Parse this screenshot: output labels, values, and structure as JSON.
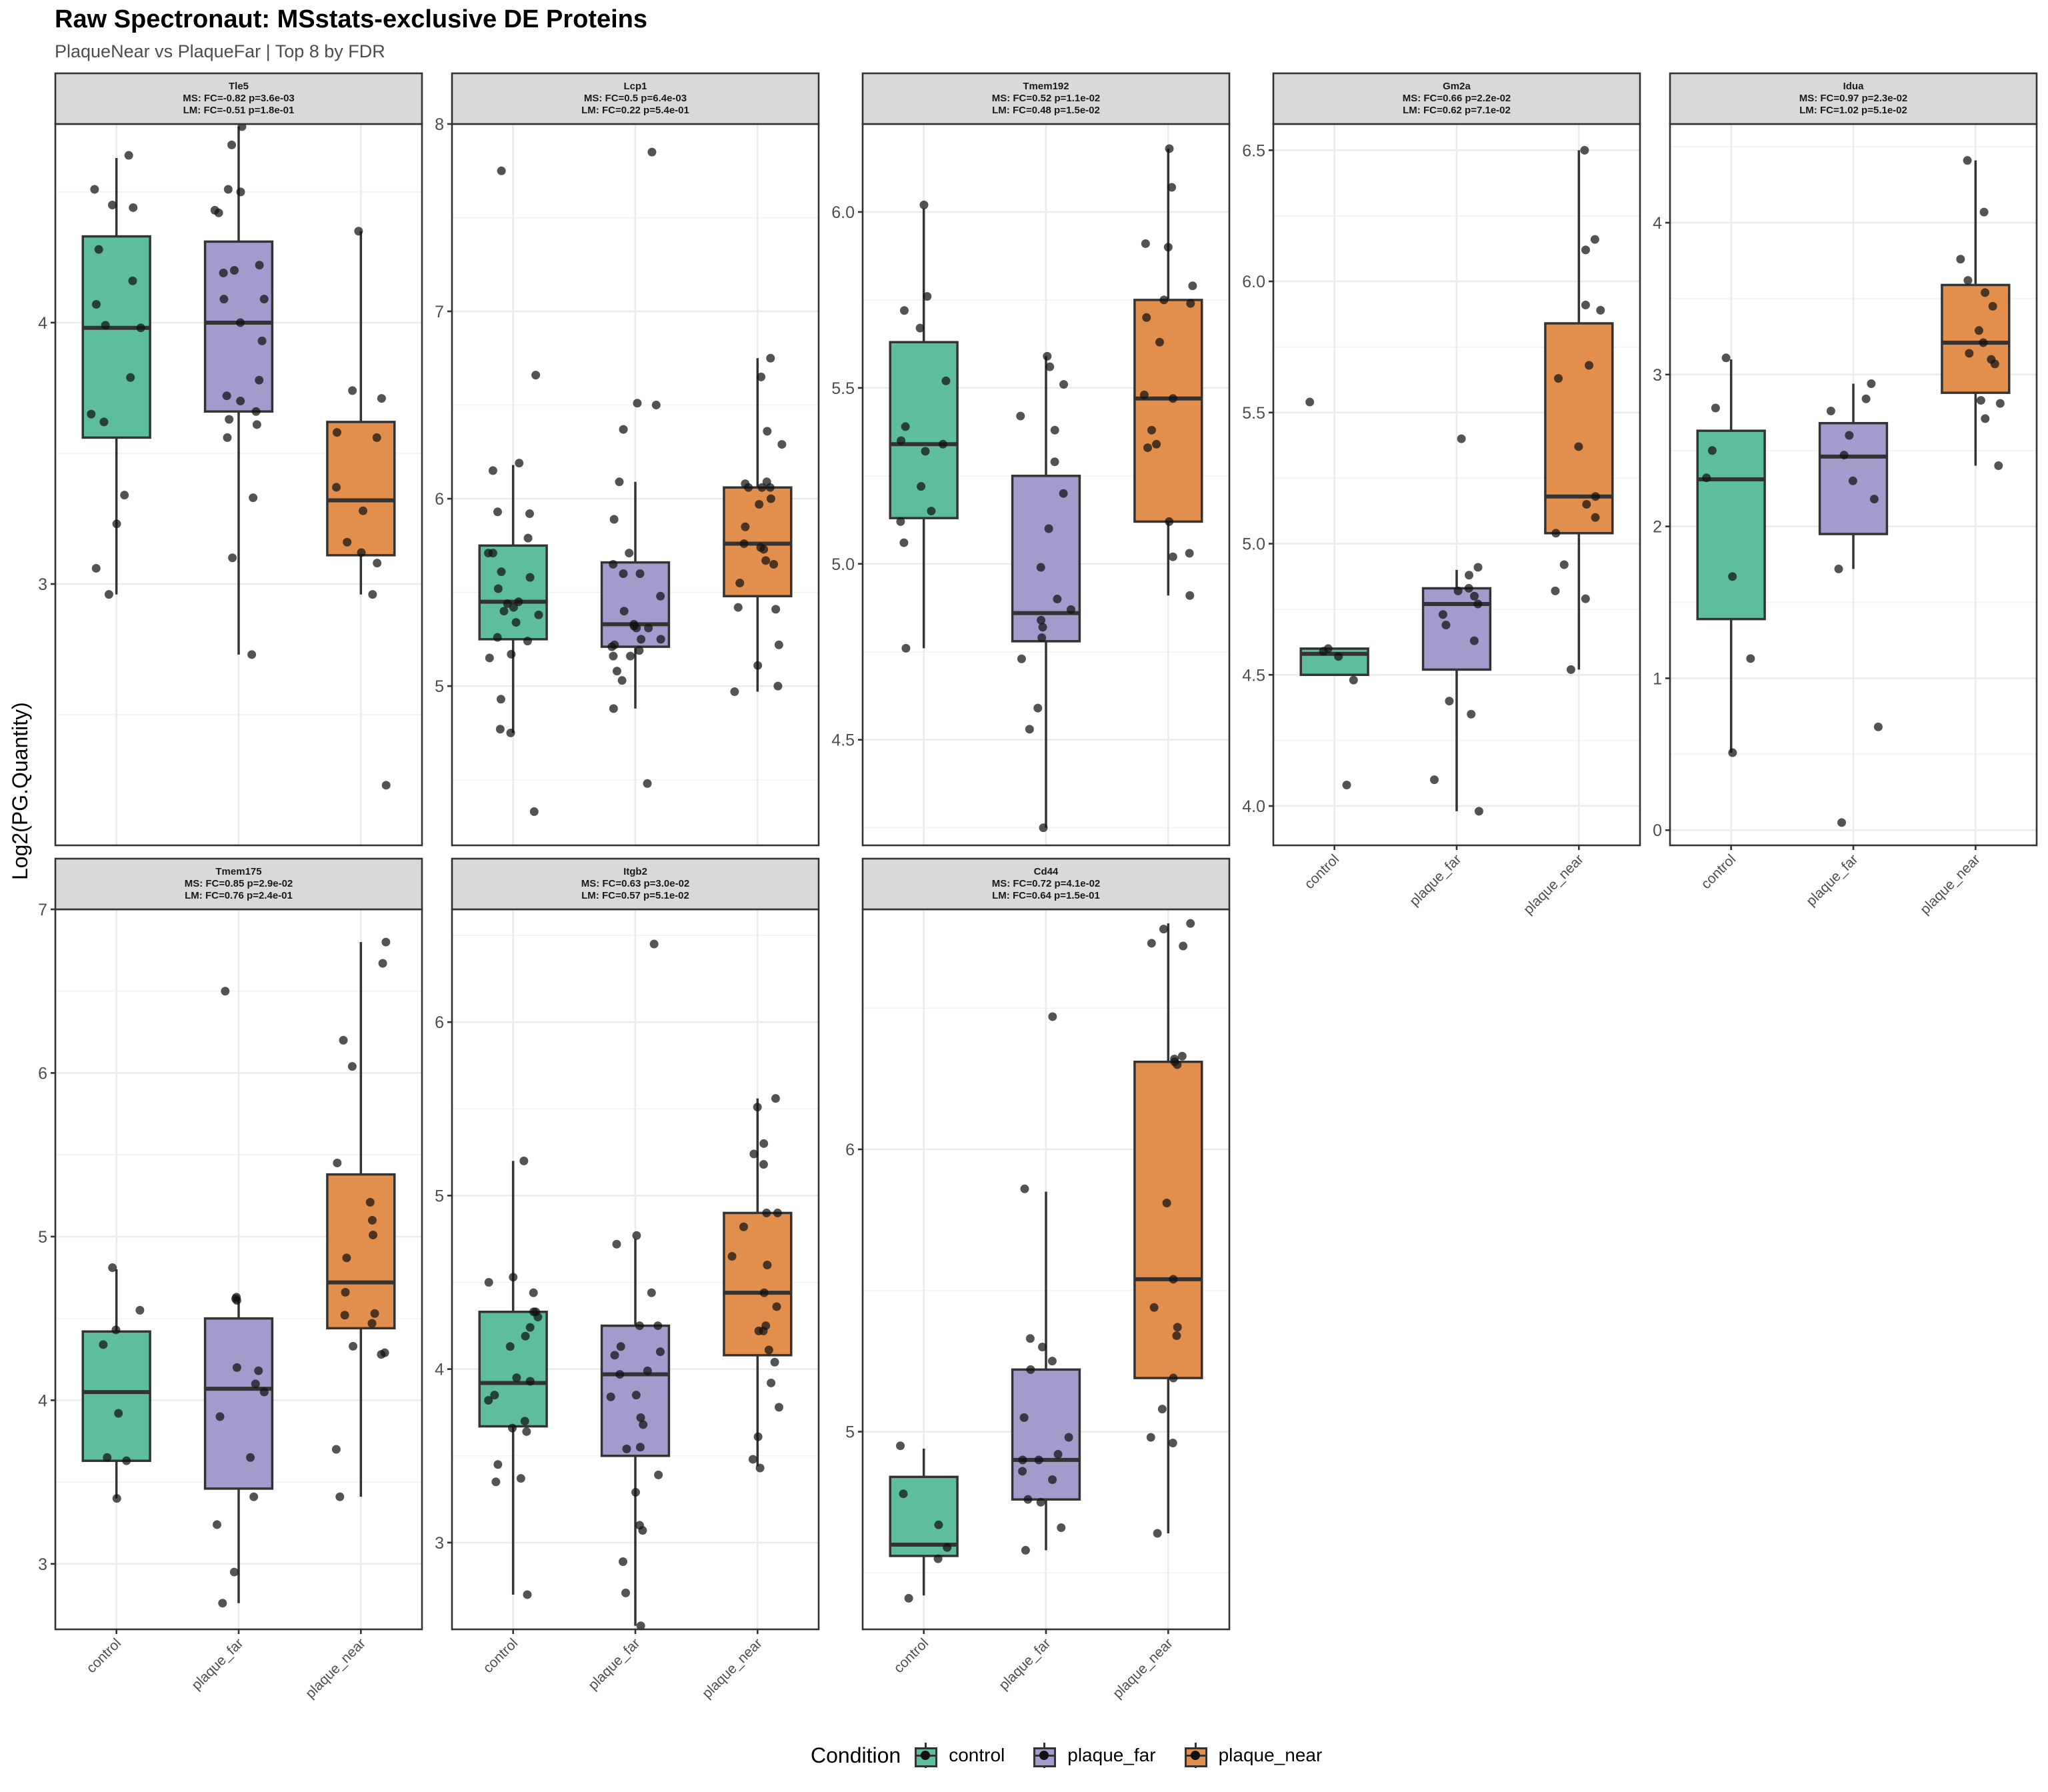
{
  "title": "Raw Spectronaut: MSstats-exclusive DE Proteins",
  "subtitle": "PlaqueNear vs PlaqueFar | Top 8 by FDR",
  "chart_data": {
    "type": "box",
    "title": "Raw Spectronaut: MSstats-exclusive DE Proteins",
    "subtitle": "PlaqueNear vs PlaqueFar | Top 8 by FDR",
    "ylabel": "Log2(PG.Quantity)",
    "xlabel": "",
    "categories": [
      "control",
      "plaque_far",
      "plaque_near"
    ],
    "legend": {
      "title": "Condition",
      "position": "bottom",
      "entries": [
        "control",
        "plaque_far",
        "plaque_near"
      ]
    },
    "colors": {
      "control": "#1b9e77",
      "plaque_far": "#7570b3",
      "plaque_near": "#d95f02"
    },
    "grid": true,
    "panels": [
      {
        "protein": "Tle5",
        "ms": "MS: FC=-0.82 p=3.6e-03",
        "lm": "LM: FC=-0.51 p=1.8e-01",
        "ylim": [
          2.0,
          4.76
        ],
        "yticks": [
          3,
          4
        ],
        "boxes": [
          {
            "group": "control",
            "min": 2.96,
            "q1": 3.56,
            "median": 3.98,
            "q3": 4.33,
            "max": 4.63,
            "points": [
              4.64,
              4.51,
              4.45,
              4.44,
              4.28,
              4.16,
              4.07,
              3.98,
              3.99,
              3.79,
              3.65,
              3.62,
              3.34,
              3.23,
              3.06,
              2.96
            ]
          },
          {
            "group": "plaque_far",
            "min": 2.73,
            "q1": 3.66,
            "median": 4.0,
            "q3": 4.31,
            "max": 4.75,
            "points": [
              4.75,
              4.68,
              4.51,
              4.5,
              4.42,
              4.43,
              4.22,
              4.19,
              4.2,
              4.09,
              4.09,
              4.0,
              3.93,
              3.78,
              3.72,
              3.7,
              3.66,
              3.63,
              3.61,
              3.56,
              3.33,
              3.1,
              2.73
            ]
          },
          {
            "group": "plaque_near",
            "min": 2.96,
            "q1": 3.11,
            "median": 3.32,
            "q3": 3.62,
            "max": 4.35,
            "points": [
              4.35,
              3.74,
              3.71,
              3.58,
              3.56,
              3.37,
              3.28,
              3.16,
              3.12,
              3.08,
              2.96,
              2.23
            ]
          }
        ]
      },
      {
        "protein": "Lcp1",
        "ms": "MS: FC=0.5 p=6.4e-03",
        "lm": "LM: FC=0.22 p=5.4e-01",
        "ylim": [
          4.15,
          8.0
        ],
        "yticks": [
          5,
          6,
          7,
          8
        ],
        "boxes": [
          {
            "group": "control",
            "min": 4.75,
            "q1": 5.25,
            "median": 5.45,
            "q3": 5.75,
            "max": 6.18,
            "points": [
              7.75,
              6.66,
              6.19,
              6.15,
              5.93,
              5.92,
              5.79,
              5.71,
              5.71,
              5.61,
              5.58,
              5.52,
              5.44,
              5.45,
              5.42,
              5.4,
              5.38,
              5.34,
              5.26,
              5.24,
              5.17,
              5.15,
              4.93,
              4.75,
              4.77,
              4.33
            ]
          },
          {
            "group": "plaque_far",
            "min": 4.88,
            "q1": 5.21,
            "median": 5.33,
            "q3": 5.66,
            "max": 6.09,
            "points": [
              7.85,
              6.51,
              6.5,
              6.37,
              6.09,
              5.89,
              5.71,
              5.65,
              5.6,
              5.6,
              5.48,
              5.4,
              5.33,
              5.32,
              5.31,
              5.31,
              5.25,
              5.25,
              5.22,
              5.21,
              5.19,
              5.16,
              5.16,
              5.08,
              5.03,
              4.88,
              4.48
            ]
          },
          {
            "group": "plaque_near",
            "min": 4.97,
            "q1": 5.48,
            "median": 5.76,
            "q3": 6.06,
            "max": 6.75,
            "points": [
              6.75,
              6.65,
              6.36,
              6.29,
              6.09,
              6.08,
              6.06,
              6.06,
              6.06,
              6.0,
              5.97,
              5.85,
              5.76,
              5.74,
              5.73,
              5.67,
              5.65,
              5.55,
              5.41,
              5.42,
              5.22,
              5.11,
              5.0,
              4.97
            ]
          }
        ]
      },
      {
        "protein": "Tmem192",
        "ms": "MS: FC=0.52 p=1.1e-02",
        "lm": "LM: FC=0.48 p=1.5e-02",
        "ylim": [
          4.2,
          6.25
        ],
        "yticks": [
          4.5,
          5.0,
          5.5,
          6.0
        ],
        "boxes": [
          {
            "group": "control",
            "min": 4.76,
            "q1": 5.13,
            "median": 5.34,
            "q3": 5.63,
            "max": 6.01,
            "points": [
              6.02,
              5.76,
              5.72,
              5.67,
              5.52,
              5.39,
              5.35,
              5.34,
              5.32,
              5.22,
              5.15,
              5.12,
              5.06,
              4.76
            ]
          },
          {
            "group": "plaque_far",
            "min": 4.25,
            "q1": 4.78,
            "median": 4.86,
            "q3": 5.25,
            "max": 5.59,
            "points": [
              5.59,
              5.56,
              5.51,
              5.42,
              5.38,
              5.29,
              5.2,
              5.1,
              4.99,
              4.9,
              4.87,
              4.84,
              4.82,
              4.79,
              4.73,
              4.59,
              4.53,
              4.25
            ]
          },
          {
            "group": "plaque_near",
            "min": 4.91,
            "q1": 5.12,
            "median": 5.47,
            "q3": 5.75,
            "max": 6.18,
            "points": [
              6.18,
              6.07,
              5.91,
              5.9,
              5.79,
              5.75,
              5.74,
              5.7,
              5.63,
              5.48,
              5.47,
              5.38,
              5.33,
              5.34,
              5.12,
              5.03,
              5.02,
              4.91
            ]
          }
        ]
      },
      {
        "protein": "Gm2a",
        "ms": "MS: FC=0.66 p=2.2e-02",
        "lm": "LM: FC=0.62 p=7.1e-02",
        "ylim": [
          3.85,
          6.6
        ],
        "yticks": [
          4.0,
          4.5,
          5.0,
          5.5,
          6.0,
          6.5
        ],
        "boxes": [
          {
            "group": "control",
            "min": 4.5,
            "q1": 4.5,
            "median": 4.58,
            "q3": 4.6,
            "max": 4.6,
            "points": [
              5.54,
              4.6,
              4.59,
              4.57,
              4.48,
              4.08
            ]
          },
          {
            "group": "plaque_far",
            "min": 3.98,
            "q1": 4.52,
            "median": 4.77,
            "q3": 4.83,
            "max": 4.9,
            "points": [
              5.4,
              4.91,
              4.88,
              4.83,
              4.82,
              4.8,
              4.77,
              4.73,
              4.69,
              4.63,
              4.4,
              4.35,
              4.1,
              3.98
            ]
          },
          {
            "group": "plaque_near",
            "min": 4.52,
            "q1": 5.04,
            "median": 5.18,
            "q3": 5.84,
            "max": 6.5,
            "points": [
              6.5,
              6.16,
              6.12,
              5.91,
              5.89,
              5.68,
              5.63,
              5.37,
              5.18,
              5.15,
              5.1,
              5.04,
              4.92,
              4.82,
              4.79,
              4.52
            ]
          }
        ]
      },
      {
        "protein": "Idua",
        "ms": "MS: FC=0.97 p=2.3e-02",
        "lm": "LM: FC=1.02 p=5.1e-02",
        "ylim": [
          -0.1,
          4.65
        ],
        "yticks": [
          0,
          1,
          2,
          3,
          4
        ],
        "boxes": [
          {
            "group": "control",
            "min": 0.51,
            "q1": 1.39,
            "median": 2.31,
            "q3": 2.63,
            "max": 3.1,
            "points": [
              3.11,
              2.78,
              2.5,
              2.32,
              1.67,
              1.13,
              0.51
            ]
          },
          {
            "group": "plaque_far",
            "min": 1.72,
            "q1": 1.95,
            "median": 2.46,
            "q3": 2.68,
            "max": 2.94,
            "points": [
              2.94,
              2.84,
              2.76,
              2.6,
              2.47,
              2.3,
              2.18,
              1.72,
              0.68,
              0.05
            ]
          },
          {
            "group": "plaque_near",
            "min": 2.4,
            "q1": 2.88,
            "median": 3.21,
            "q3": 3.59,
            "max": 4.41,
            "points": [
              4.41,
              4.07,
              3.76,
              3.62,
              3.54,
              3.45,
              3.29,
              3.21,
              3.14,
              3.1,
              3.07,
              2.83,
              2.81,
              2.71,
              2.4
            ]
          }
        ]
      },
      {
        "protein": "Tmem175",
        "ms": "MS: FC=0.85 p=2.9e-02",
        "lm": "LM: FC=0.76 p=2.4e-01",
        "ylim": [
          2.6,
          7.0
        ],
        "yticks": [
          3,
          4,
          5,
          6,
          7
        ],
        "boxes": [
          {
            "group": "control",
            "min": 3.4,
            "q1": 3.63,
            "median": 4.05,
            "q3": 4.42,
            "max": 4.8,
            "points": [
              4.81,
              4.55,
              4.43,
              4.34,
              3.92,
              3.65,
              3.63,
              3.4
            ]
          },
          {
            "group": "plaque_far",
            "min": 2.76,
            "q1": 3.46,
            "median": 4.07,
            "q3": 4.5,
            "max": 4.62,
            "points": [
              6.5,
              4.63,
              4.62,
              4.61,
              4.2,
              4.18,
              4.1,
              4.05,
              3.9,
              3.65,
              3.41,
              3.24,
              2.95,
              2.76
            ]
          },
          {
            "group": "plaque_near",
            "min": 3.41,
            "q1": 4.44,
            "median": 4.72,
            "q3": 5.38,
            "max": 6.8,
            "points": [
              6.8,
              6.67,
              6.2,
              6.04,
              5.45,
              5.21,
              5.1,
              5.01,
              4.87,
              4.66,
              4.53,
              4.52,
              4.47,
              4.33,
              4.29,
              4.28,
              3.7,
              3.41
            ]
          }
        ]
      },
      {
        "protein": "Itgb2",
        "ms": "MS: FC=0.63 p=3.0e-02",
        "lm": "LM: FC=0.57 p=5.1e-02",
        "ylim": [
          2.5,
          6.65
        ],
        "yticks": [
          3,
          4,
          5,
          6
        ],
        "boxes": [
          {
            "group": "control",
            "min": 2.7,
            "q1": 3.67,
            "median": 3.92,
            "q3": 4.33,
            "max": 5.2,
            "points": [
              5.2,
              4.53,
              4.5,
              4.44,
              4.33,
              4.33,
              4.3,
              4.24,
              4.19,
              4.13,
              3.95,
              3.93,
              3.85,
              3.82,
              3.7,
              3.66,
              3.64,
              3.45,
              3.37,
              3.35,
              2.7
            ]
          },
          {
            "group": "plaque_far",
            "min": 2.52,
            "q1": 3.5,
            "median": 3.97,
            "q3": 4.25,
            "max": 4.75,
            "points": [
              6.45,
              4.77,
              4.72,
              4.44,
              4.25,
              4.25,
              4.13,
              4.1,
              4.08,
              3.99,
              3.97,
              3.85,
              3.84,
              3.72,
              3.68,
              3.55,
              3.54,
              3.39,
              3.29,
              3.1,
              3.07,
              2.89,
              2.71,
              2.52
            ]
          },
          {
            "group": "plaque_near",
            "min": 3.44,
            "q1": 4.08,
            "median": 4.44,
            "q3": 4.9,
            "max": 5.56,
            "points": [
              5.56,
              5.51,
              5.3,
              5.24,
              5.18,
              4.9,
              4.9,
              4.82,
              4.65,
              4.6,
              4.44,
              4.36,
              4.25,
              4.22,
              4.22,
              4.11,
              4.04,
              3.92,
              3.78,
              3.61,
              3.48,
              3.43
            ]
          }
        ]
      },
      {
        "protein": "Cd44",
        "ms": "MS: FC=0.72 p=4.1e-02",
        "lm": "LM: FC=0.64 p=1.5e-01",
        "ylim": [
          4.3,
          6.85
        ],
        "yticks": [
          5,
          6
        ],
        "boxes": [
          {
            "group": "control",
            "min": 4.42,
            "q1": 4.56,
            "median": 4.6,
            "q3": 4.84,
            "max": 4.94,
            "points": [
              4.95,
              4.78,
              4.67,
              4.59,
              4.55,
              4.41
            ]
          },
          {
            "group": "plaque_far",
            "min": 4.58,
            "q1": 4.76,
            "median": 4.9,
            "q3": 5.22,
            "max": 5.85,
            "points": [
              6.47,
              5.86,
              5.33,
              5.3,
              5.25,
              5.22,
              5.05,
              4.98,
              4.92,
              4.9,
              4.9,
              4.86,
              4.83,
              4.76,
              4.75,
              4.66,
              4.58
            ]
          },
          {
            "group": "plaque_near",
            "min": 4.64,
            "q1": 5.19,
            "median": 5.54,
            "q3": 6.31,
            "max": 6.8,
            "points": [
              6.8,
              6.78,
              6.73,
              6.72,
              6.33,
              6.32,
              6.31,
              6.3,
              5.81,
              5.54,
              5.44,
              5.37,
              5.34,
              5.19,
              5.08,
              4.98,
              4.96,
              4.64
            ]
          }
        ]
      }
    ]
  }
}
